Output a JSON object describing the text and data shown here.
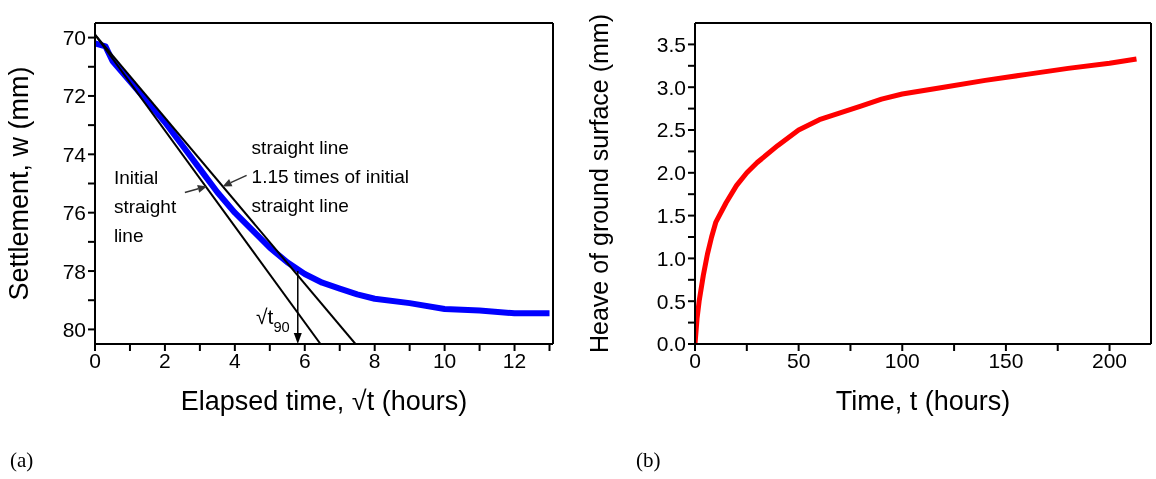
{
  "chart_data": [
    {
      "type": "line",
      "xlabel": "Elapsed time, √t (hours)",
      "ylabel": "Settlement, w (mm)",
      "xlim": [
        0,
        13.1
      ],
      "ylim": [
        80.5,
        69.5
      ],
      "xticks": [
        0,
        {
          "value": 1,
          "label": null
        },
        2,
        {
          "value": 3,
          "label": null
        },
        4,
        {
          "value": 5,
          "label": null
        },
        6,
        {
          "value": 7,
          "label": null
        },
        8,
        {
          "value": 9,
          "label": null
        },
        10,
        {
          "value": 11,
          "label": null
        },
        12,
        {
          "value": 13,
          "label": null
        }
      ],
      "yticks": [
        70,
        {
          "value": 71,
          "label": null
        },
        72,
        {
          "value": 73,
          "label": null
        },
        74,
        {
          "value": 75,
          "label": null
        },
        76,
        {
          "value": 77,
          "label": null
        },
        78,
        {
          "value": 79,
          "label": null
        },
        80
      ],
      "grid": false,
      "series": [
        {
          "color": "#0000ff",
          "x": [
            0,
            0.3,
            0.5,
            1,
            1.5,
            2,
            2.5,
            3,
            3.5,
            4,
            4.5,
            5,
            5.5,
            6,
            6.5,
            7,
            7.5,
            8,
            9,
            10,
            11,
            12,
            13
          ],
          "values": [
            70.2,
            70.3,
            70.8,
            71.5,
            72.2,
            72.9,
            73.7,
            74.5,
            75.3,
            76.0,
            76.6,
            77.2,
            77.7,
            78.1,
            78.4,
            78.6,
            78.8,
            78.95,
            79.1,
            79.3,
            79.35,
            79.45,
            79.45
          ]
        },
        {
          "color": "#000000",
          "x": [
            0,
            6.45
          ],
          "values": [
            69.9,
            80.5
          ]
        },
        {
          "color": "#000000",
          "x": [
            0,
            7.45
          ],
          "values": [
            69.9,
            80.5
          ]
        }
      ],
      "annotations": [
        {
          "text": "Initial\nstraight\nline",
          "x": 3.2,
          "y": 75.1
        },
        {
          "text": "straight line\n1.15 times of initial\nstraight line",
          "x": 3.65,
          "y": 75.1
        },
        {
          "text": "√t$_{90}$",
          "x": 5.8,
          "y": 78.0
        },
        "(a)"
      ]
    },
    {
      "type": "line",
      "xlabel": "Time, t (hours)",
      "ylabel": "Heave of ground surface (mm)",
      "xlim": [
        0,
        220
      ],
      "ylim": [
        0,
        3.75
      ],
      "xticks": [
        0,
        {
          "value": 25,
          "label": null
        },
        50,
        {
          "value": 75,
          "label": null
        },
        100,
        {
          "value": 125,
          "label": null
        },
        150,
        {
          "value": 175,
          "label": null
        },
        200
      ],
      "yticks": [
        {
          "value": 0,
          "label": "0.0"
        },
        {
          "value": 0.25,
          "label": null
        },
        0.5,
        {
          "value": 0.75,
          "label": null
        },
        {
          "value": 1,
          "label": "1.0"
        },
        {
          "value": 1.25,
          "label": null
        },
        1.5,
        {
          "value": 1.75,
          "label": null
        },
        {
          "value": 2,
          "label": "2.0"
        },
        {
          "value": 2.25,
          "label": null
        },
        2.5,
        {
          "value": 2.75,
          "label": null
        },
        {
          "value": 3,
          "label": "3.0"
        },
        {
          "value": 3.25,
          "label": null
        },
        3.5
      ],
      "grid": false,
      "series": [
        {
          "color": "#ff0000",
          "x": [
            0,
            1,
            2,
            4,
            6,
            8,
            10,
            15,
            20,
            25,
            30,
            40,
            50,
            60,
            70,
            80,
            90,
            100,
            120,
            140,
            160,
            180,
            200,
            213
          ],
          "values": [
            0,
            0.3,
            0.5,
            0.8,
            1.05,
            1.25,
            1.42,
            1.65,
            1.85,
            2.0,
            2.12,
            2.32,
            2.5,
            2.62,
            2.7,
            2.78,
            2.86,
            2.92,
            3.0,
            3.08,
            3.15,
            3.22,
            3.28,
            3.33
          ]
        }
      ],
      "annotations": [
        "(b)"
      ]
    }
  ]
}
